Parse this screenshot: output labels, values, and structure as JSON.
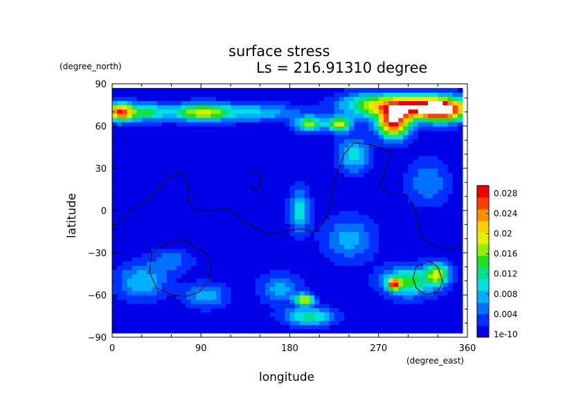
{
  "chart_data": {
    "type": "heatmap",
    "title": "surface stress",
    "subtitle": "Ls = 216.91310 degree",
    "xlabel": "longitude",
    "ylabel": "latitude",
    "x_unit": "(degree_east)",
    "y_unit": "(degree_north)",
    "xlim": [
      0,
      360
    ],
    "ylim": [
      -90,
      90
    ],
    "x_ticks": [
      "0",
      "90",
      "180",
      "270",
      "360"
    ],
    "y_ticks": [
      "90",
      "60",
      "30",
      "0",
      "−30",
      "−60",
      "−90"
    ],
    "colorbar": {
      "labels": [
        "1e-10",
        "0.004",
        "0.008",
        "0.012",
        "0.016",
        "0.02",
        "0.024",
        "0.028"
      ],
      "range": [
        0,
        0.03
      ],
      "colors": [
        "#0000e6",
        "#0030ff",
        "#0070ff",
        "#00b0ff",
        "#00e0e0",
        "#00e090",
        "#20e020",
        "#90ee00",
        "#e0f000",
        "#ffd000",
        "#ff9000",
        "#ff4000",
        "#ee0000"
      ]
    },
    "data_region": {
      "lon": [
        0,
        355
      ],
      "lat": [
        -87,
        87
      ]
    },
    "background_value": 0.001,
    "features": [
      {
        "lon": 8,
        "lat": 70,
        "value": 0.026,
        "rx": 14,
        "ry": 6
      },
      {
        "lon": 35,
        "lat": 70,
        "value": 0.012,
        "rx": 20,
        "ry": 6
      },
      {
        "lon": 90,
        "lat": 70,
        "value": 0.018,
        "rx": 30,
        "ry": 6
      },
      {
        "lon": 150,
        "lat": 70,
        "value": 0.008,
        "rx": 40,
        "ry": 6
      },
      {
        "lon": 200,
        "lat": 62,
        "value": 0.016,
        "rx": 14,
        "ry": 5
      },
      {
        "lon": 230,
        "lat": 62,
        "value": 0.018,
        "rx": 12,
        "ry": 5
      },
      {
        "lon": 260,
        "lat": 75,
        "value": 0.014,
        "rx": 30,
        "ry": 8
      },
      {
        "lon": 285,
        "lat": 62,
        "value": 0.026,
        "rx": 16,
        "ry": 10
      },
      {
        "lon": 300,
        "lat": 74,
        "value": 0.022,
        "rx": 30,
        "ry": 8
      },
      {
        "lon": 335,
        "lat": 72,
        "value": 0.032,
        "rx": 25,
        "ry": 8
      },
      {
        "lon": 245,
        "lat": 40,
        "value": 0.01,
        "rx": 15,
        "ry": 12
      },
      {
        "lon": 190,
        "lat": 0,
        "value": 0.01,
        "rx": 10,
        "ry": 14
      },
      {
        "lon": 240,
        "lat": -20,
        "value": 0.007,
        "rx": 25,
        "ry": 15
      },
      {
        "lon": 320,
        "lat": 20,
        "value": 0.006,
        "rx": 20,
        "ry": 15
      },
      {
        "lon": 300,
        "lat": -50,
        "value": 0.014,
        "rx": 25,
        "ry": 10
      },
      {
        "lon": 285,
        "lat": -52,
        "value": 0.02,
        "rx": 6,
        "ry": 4
      },
      {
        "lon": 330,
        "lat": -45,
        "value": 0.016,
        "rx": 12,
        "ry": 8
      },
      {
        "lon": 195,
        "lat": -63,
        "value": 0.018,
        "rx": 10,
        "ry": 4
      },
      {
        "lon": 200,
        "lat": -75,
        "value": 0.012,
        "rx": 25,
        "ry": 6
      },
      {
        "lon": 30,
        "lat": -50,
        "value": 0.008,
        "rx": 25,
        "ry": 12
      },
      {
        "lon": 95,
        "lat": -60,
        "value": 0.008,
        "rx": 20,
        "ry": 8
      },
      {
        "lon": 170,
        "lat": -55,
        "value": 0.007,
        "rx": 20,
        "ry": 10
      },
      {
        "lon": 60,
        "lat": -35,
        "value": 0.005,
        "rx": 20,
        "ry": 8
      }
    ],
    "contours": [
      [
        [
          0,
          -15
        ],
        [
          10,
          -5
        ],
        [
          25,
          3
        ],
        [
          40,
          10
        ],
        [
          55,
          22
        ],
        [
          70,
          28
        ],
        [
          75,
          22
        ],
        [
          78,
          5
        ],
        [
          85,
          0
        ],
        [
          100,
          0
        ],
        [
          115,
          2
        ],
        [
          130,
          -6
        ],
        [
          145,
          -12
        ],
        [
          160,
          -17
        ],
        [
          175,
          -15
        ],
        [
          190,
          -13
        ],
        [
          205,
          -15
        ],
        [
          215,
          -8
        ],
        [
          220,
          0
        ],
        [
          222,
          10
        ],
        [
          227,
          25
        ],
        [
          235,
          40
        ],
        [
          245,
          48
        ],
        [
          260,
          47
        ],
        [
          275,
          44
        ],
        [
          282,
          42
        ],
        [
          277,
          30
        ],
        [
          270,
          18
        ],
        [
          280,
          12
        ],
        [
          295,
          12
        ],
        [
          305,
          5
        ],
        [
          310,
          -8
        ],
        [
          312,
          -18
        ],
        [
          320,
          -22
        ],
        [
          332,
          -27
        ],
        [
          345,
          -28
        ],
        [
          355,
          -22
        ]
      ],
      [
        [
          140,
          25
        ],
        [
          146,
          28
        ],
        [
          150,
          25
        ],
        [
          151,
          16
        ],
        [
          145,
          14
        ],
        [
          140,
          18
        ],
        [
          140,
          25
        ]
      ],
      [
        [
          40,
          -30
        ],
        [
          55,
          -23
        ],
        [
          70,
          -20
        ],
        [
          85,
          -26
        ],
        [
          95,
          -30
        ],
        [
          100,
          -40
        ],
        [
          98,
          -50
        ],
        [
          88,
          -58
        ],
        [
          75,
          -61
        ],
        [
          60,
          -60
        ],
        [
          45,
          -55
        ],
        [
          38,
          -44
        ],
        [
          40,
          -30
        ]
      ],
      [
        [
          308,
          -40
        ],
        [
          322,
          -36
        ],
        [
          330,
          -40
        ],
        [
          335,
          -50
        ],
        [
          330,
          -58
        ],
        [
          318,
          -60
        ],
        [
          308,
          -55
        ],
        [
          305,
          -48
        ],
        [
          308,
          -40
        ]
      ]
    ]
  }
}
